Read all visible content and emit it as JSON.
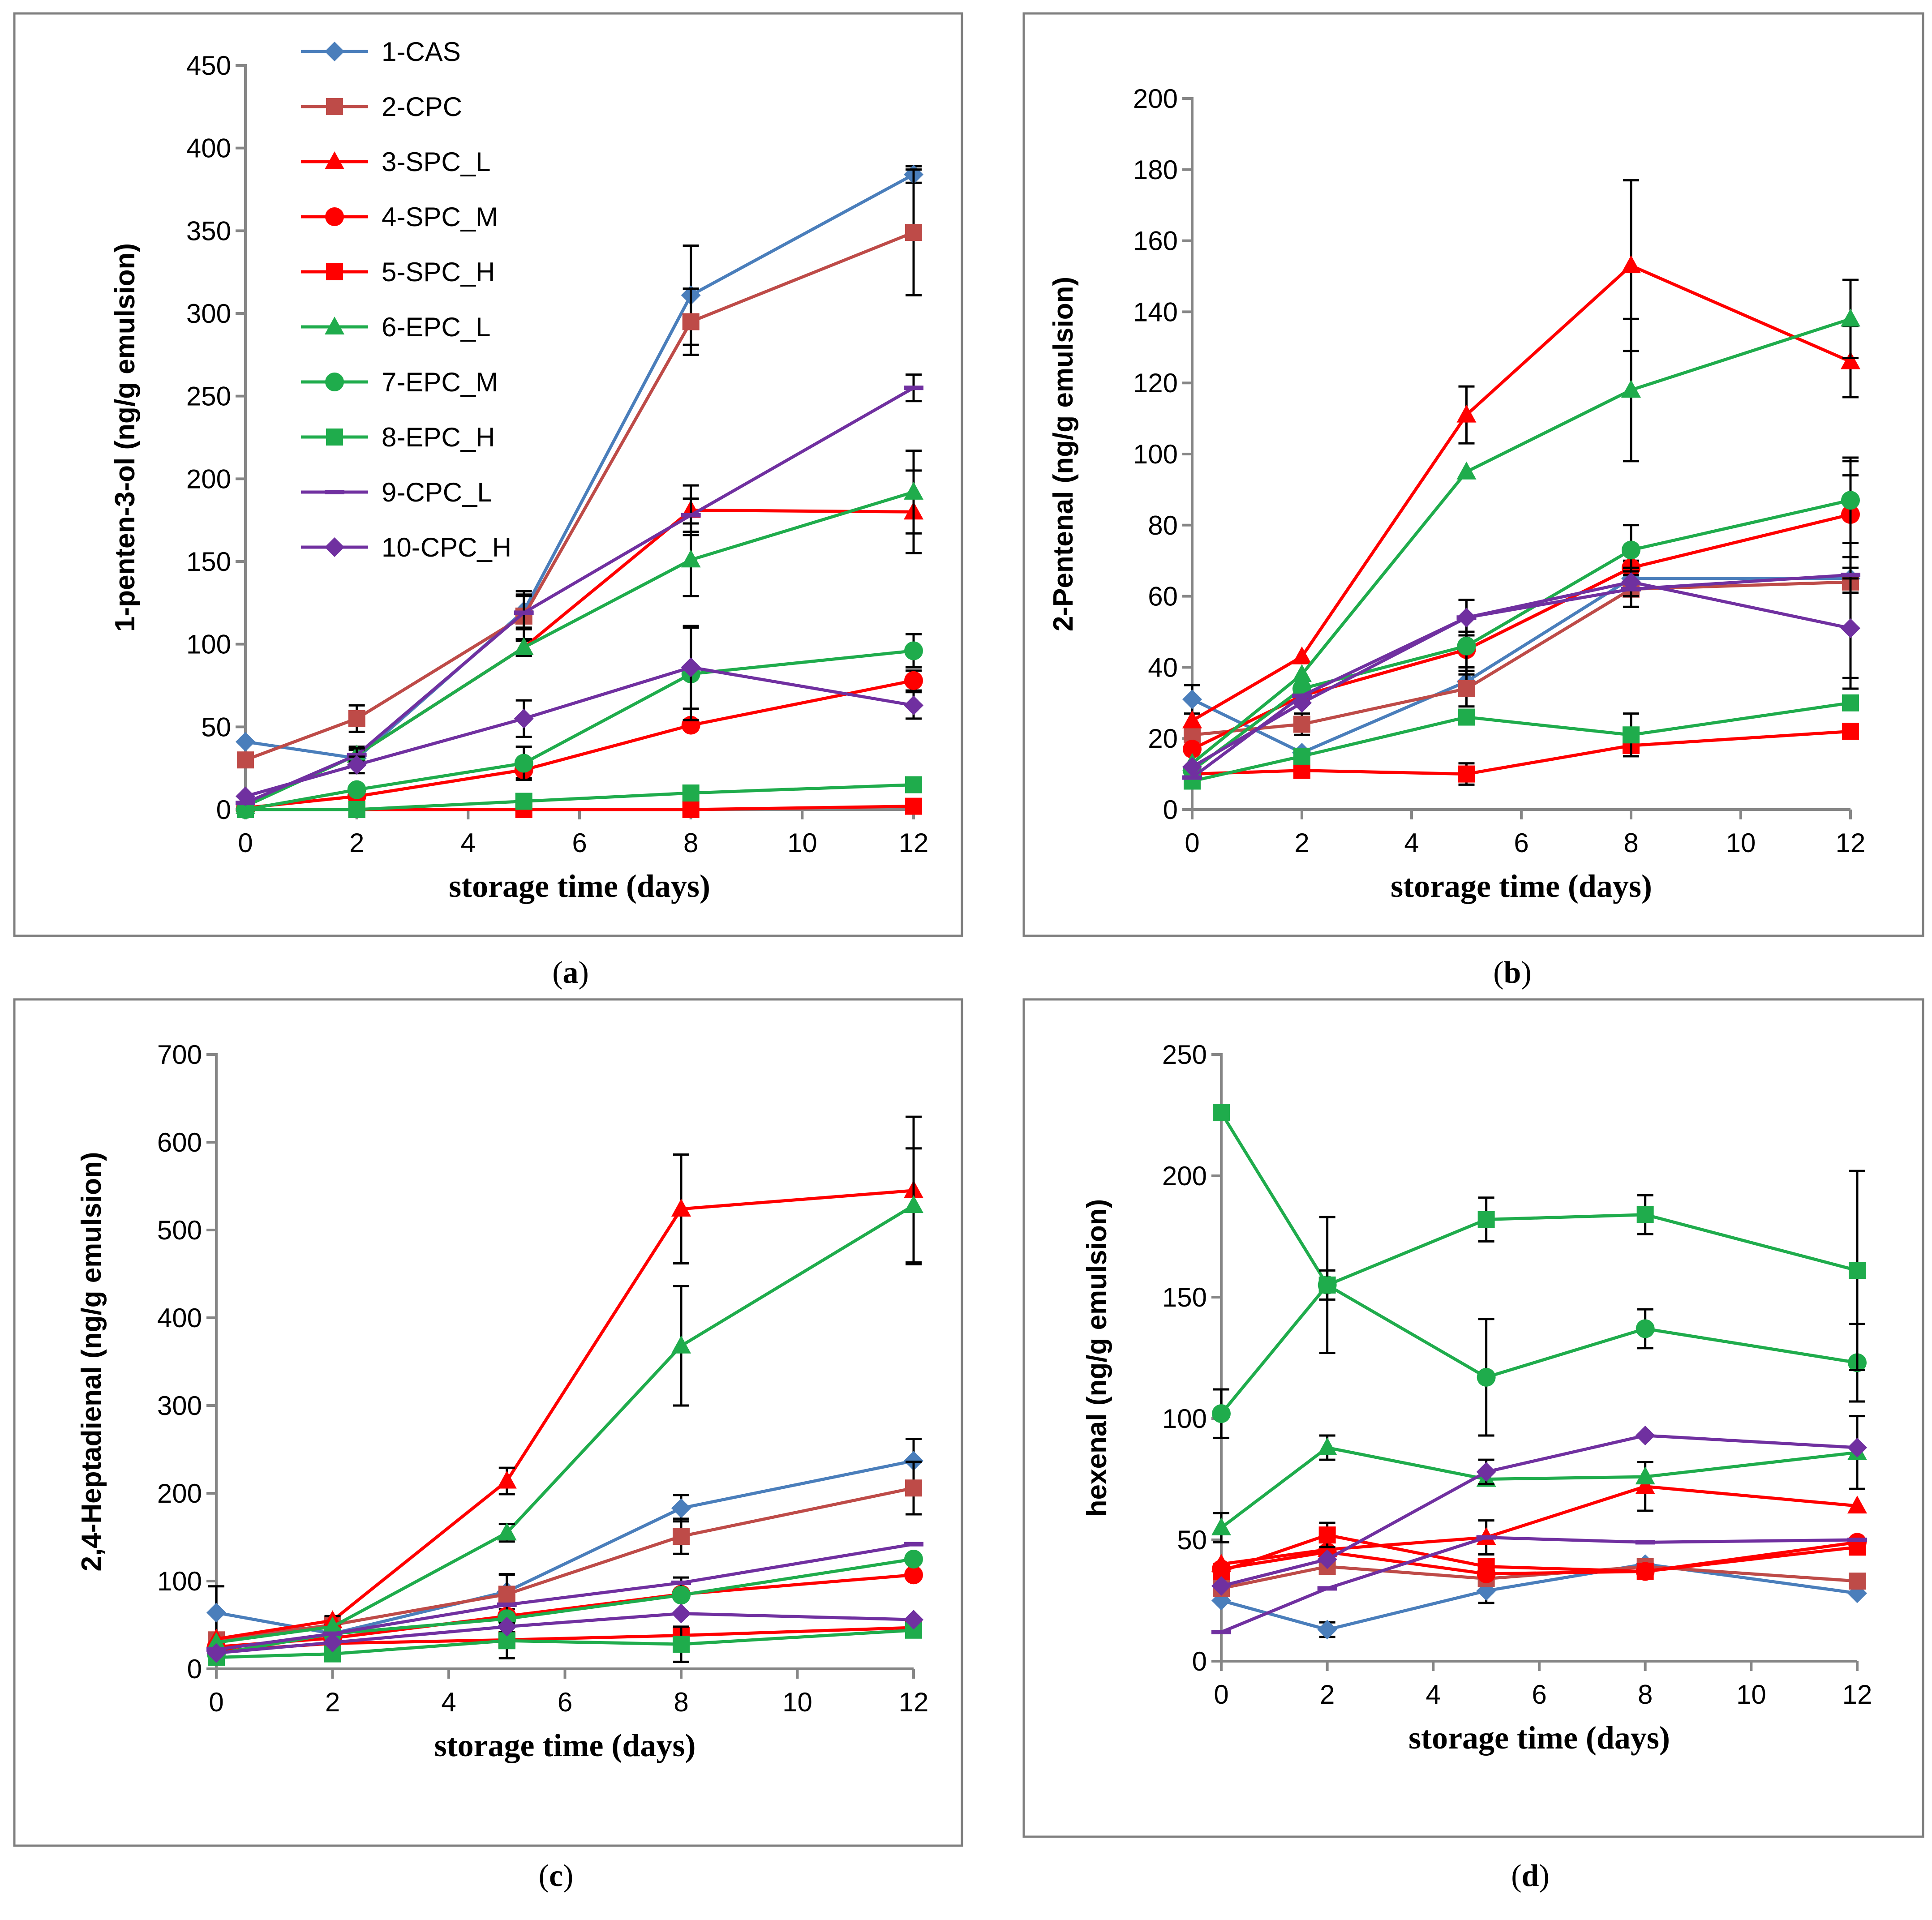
{
  "figure": {
    "xlabel": "storage time (days)",
    "series_styles": [
      {
        "name": "1-CAS",
        "color": "#4a7ebb",
        "marker": "diamond"
      },
      {
        "name": "2-CPC",
        "color": "#be4b48",
        "marker": "square"
      },
      {
        "name": "3-SPC_L",
        "color": "#ff0000",
        "marker": "triangle"
      },
      {
        "name": "4-SPC_M",
        "color": "#ff0000",
        "marker": "circle"
      },
      {
        "name": "5-SPC_H",
        "color": "#ff0000",
        "marker": "square"
      },
      {
        "name": "6-EPC_L",
        "color": "#1fac4c",
        "marker": "triangle"
      },
      {
        "name": "7-EPC_M",
        "color": "#1fac4c",
        "marker": "circle"
      },
      {
        "name": "8-EPC_H",
        "color": "#1fac4c",
        "marker": "square"
      },
      {
        "name": "9-CPC_L",
        "color": "#7030a0",
        "marker": "dash"
      },
      {
        "name": "10-CPC_H",
        "color": "#7030a0",
        "marker": "diamond"
      }
    ]
  },
  "chart_data": [
    {
      "id": "a",
      "type": "line",
      "caption_letter": "a",
      "title": "",
      "xlabel": "storage time (days)",
      "ylabel": "1-penten-3-ol (ng/g emulsion)",
      "x": [
        0,
        2,
        5,
        8,
        12
      ],
      "xticks": [
        0,
        2,
        4,
        6,
        8,
        10,
        12
      ],
      "xlim": [
        0,
        12
      ],
      "ylim": [
        0,
        450
      ],
      "yticks": [
        0,
        50,
        100,
        150,
        200,
        250,
        300,
        350,
        400,
        450
      ],
      "legend": true,
      "series": [
        {
          "name": "1-CAS",
          "values": [
            41,
            31,
            120,
            311,
            384
          ],
          "errors": [
            0,
            0,
            10,
            30,
            5
          ]
        },
        {
          "name": "2-CPC",
          "values": [
            30,
            55,
            117,
            295,
            349
          ],
          "errors": [
            0,
            8,
            15,
            20,
            38
          ]
        },
        {
          "name": "3-SPC_L",
          "values": [
            3,
            33,
            98,
            181,
            180
          ],
          "errors": [
            0,
            5,
            5,
            15,
            25
          ]
        },
        {
          "name": "4-SPC_M",
          "values": [
            1,
            8,
            24,
            51,
            78
          ],
          "errors": [
            0,
            0,
            5,
            0,
            6
          ]
        },
        {
          "name": "5-SPC_H",
          "values": [
            0,
            0,
            0,
            0,
            2
          ],
          "errors": [
            0,
            0,
            0,
            0,
            0
          ]
        },
        {
          "name": "6-EPC_L",
          "values": [
            2,
            33,
            98,
            151,
            192
          ],
          "errors": [
            0,
            3,
            5,
            22,
            25
          ]
        },
        {
          "name": "7-EPC_M",
          "values": [
            0,
            12,
            28,
            82,
            96
          ],
          "errors": [
            0,
            0,
            10,
            28,
            10
          ]
        },
        {
          "name": "8-EPC_H",
          "values": [
            0,
            0,
            5,
            10,
            15
          ],
          "errors": [
            0,
            0,
            0,
            0,
            0
          ]
        },
        {
          "name": "9-CPC_L",
          "values": [
            4,
            33,
            119,
            178,
            255
          ],
          "errors": [
            0,
            4,
            10,
            10,
            8
          ]
        },
        {
          "name": "10-CPC_H",
          "values": [
            8,
            27,
            55,
            86,
            63
          ],
          "errors": [
            0,
            5,
            11,
            25,
            8
          ]
        }
      ]
    },
    {
      "id": "b",
      "type": "line",
      "caption_letter": "b",
      "title": "",
      "xlabel": "storage time (days)",
      "ylabel": "2-Pentenal (ng/g emulsion)",
      "x": [
        0,
        2,
        5,
        8,
        12
      ],
      "xticks": [
        0,
        2,
        4,
        6,
        8,
        10,
        12
      ],
      "xlim": [
        0,
        12
      ],
      "ylim": [
        0,
        200
      ],
      "yticks": [
        0,
        20,
        40,
        60,
        80,
        100,
        120,
        140,
        160,
        180,
        200
      ],
      "legend": false,
      "series": [
        {
          "name": "1-CAS",
          "values": [
            31,
            16,
            36,
            65,
            65
          ],
          "errors": [
            4,
            0,
            3,
            5,
            0
          ]
        },
        {
          "name": "2-CPC",
          "values": [
            21,
            24,
            34,
            62,
            64
          ],
          "errors": [
            0,
            3,
            5,
            5,
            30
          ]
        },
        {
          "name": "3-SPC_L",
          "values": [
            25,
            43,
            111,
            153,
            126
          ],
          "errors": [
            0,
            0,
            8,
            24,
            10
          ]
        },
        {
          "name": "4-SPC_M",
          "values": [
            17,
            32,
            45,
            68,
            83
          ],
          "errors": [
            0,
            0,
            5,
            0,
            15
          ]
        },
        {
          "name": "5-SPC_H",
          "values": [
            10,
            11,
            10,
            18,
            22
          ],
          "errors": [
            0,
            0,
            3,
            3,
            0
          ]
        },
        {
          "name": "6-EPC_L",
          "values": [
            13,
            38,
            95,
            118,
            138
          ],
          "errors": [
            0,
            0,
            0,
            20,
            11
          ]
        },
        {
          "name": "7-EPC_M",
          "values": [
            11,
            34,
            46,
            73,
            87
          ],
          "errors": [
            0,
            0,
            8,
            7,
            12
          ]
        },
        {
          "name": "8-EPC_H",
          "values": [
            8,
            15,
            26,
            21,
            30
          ],
          "errors": [
            0,
            0,
            0,
            6,
            0
          ]
        },
        {
          "name": "9-CPC_L",
          "values": [
            9,
            32,
            54,
            62,
            66
          ],
          "errors": [
            0,
            0,
            5,
            5,
            5
          ]
        },
        {
          "name": "10-CPC_H",
          "values": [
            12,
            30,
            54,
            64,
            51
          ],
          "errors": [
            0,
            0,
            5,
            4,
            14
          ]
        }
      ]
    },
    {
      "id": "c",
      "type": "line",
      "caption_letter": "c",
      "title": "",
      "xlabel": "storage time (days)",
      "ylabel": "2,4-Heptadienal (ng/g emulsion)",
      "x": [
        0,
        2,
        5,
        8,
        12
      ],
      "xticks": [
        0,
        2,
        4,
        6,
        8,
        10,
        12
      ],
      "xlim": [
        0,
        12
      ],
      "ylim": [
        0,
        700
      ],
      "yticks": [
        0,
        100,
        200,
        300,
        400,
        500,
        600,
        700
      ],
      "legend": false,
      "series": [
        {
          "name": "1-CAS",
          "values": [
            64,
            40,
            88,
            183,
            237
          ],
          "errors": [
            30,
            0,
            20,
            15,
            25
          ]
        },
        {
          "name": "2-CPC",
          "values": [
            33,
            50,
            85,
            151,
            206
          ],
          "errors": [
            0,
            10,
            22,
            20,
            30
          ]
        },
        {
          "name": "3-SPC_L",
          "values": [
            34,
            55,
            214,
            524,
            545
          ],
          "errors": [
            0,
            5,
            15,
            62,
            84
          ]
        },
        {
          "name": "4-SPC_M",
          "values": [
            25,
            35,
            60,
            85,
            107
          ],
          "errors": [
            0,
            0,
            0,
            0,
            0
          ]
        },
        {
          "name": "5-SPC_H",
          "values": [
            20,
            29,
            33,
            38,
            47
          ],
          "errors": [
            0,
            0,
            0,
            0,
            0
          ]
        },
        {
          "name": "6-EPC_L",
          "values": [
            30,
            48,
            155,
            368,
            528
          ],
          "errors": [
            0,
            0,
            10,
            68,
            65
          ]
        },
        {
          "name": "7-EPC_M",
          "values": [
            17,
            40,
            57,
            84,
            125
          ],
          "errors": [
            0,
            0,
            15,
            20,
            0
          ]
        },
        {
          "name": "8-EPC_H",
          "values": [
            13,
            17,
            32,
            28,
            44
          ],
          "errors": [
            0,
            0,
            20,
            20,
            0
          ]
        },
        {
          "name": "9-CPC_L",
          "values": [
            22,
            40,
            73,
            98,
            142
          ],
          "errors": [
            0,
            0,
            0,
            0,
            0
          ]
        },
        {
          "name": "10-CPC_H",
          "values": [
            18,
            30,
            48,
            63,
            56
          ],
          "errors": [
            0,
            0,
            0,
            0,
            0
          ]
        }
      ]
    },
    {
      "id": "d",
      "type": "line",
      "caption_letter": "d",
      "title": "",
      "xlabel": "storage time (days)",
      "ylabel": "hexenal (ng/g emulsion)",
      "x": [
        0,
        2,
        5,
        8,
        12
      ],
      "xticks": [
        0,
        2,
        4,
        6,
        8,
        10,
        12
      ],
      "xlim": [
        0,
        12
      ],
      "ylim": [
        0,
        250
      ],
      "yticks": [
        0,
        50,
        100,
        150,
        200,
        250
      ],
      "legend": false,
      "series": [
        {
          "name": "1-CAS",
          "values": [
            25,
            13,
            29,
            40,
            28
          ],
          "errors": [
            0,
            3,
            5,
            0,
            0
          ]
        },
        {
          "name": "2-CPC",
          "values": [
            30,
            39,
            34,
            39,
            33
          ],
          "errors": [
            0,
            0,
            0,
            0,
            0
          ]
        },
        {
          "name": "3-SPC_L",
          "values": [
            40,
            46,
            51,
            72,
            64
          ],
          "errors": [
            0,
            0,
            7,
            10,
            0
          ]
        },
        {
          "name": "4-SPC_M",
          "values": [
            38,
            45,
            36,
            37,
            49
          ],
          "errors": [
            0,
            0,
            0,
            0,
            0
          ]
        },
        {
          "name": "5-SPC_H",
          "values": [
            37,
            52,
            39,
            37,
            47
          ],
          "errors": [
            0,
            5,
            0,
            0,
            0
          ]
        },
        {
          "name": "6-EPC_L",
          "values": [
            55,
            88,
            75,
            76,
            86
          ],
          "errors": [
            6,
            5,
            0,
            0,
            15
          ]
        },
        {
          "name": "7-EPC_M",
          "values": [
            102,
            155,
            117,
            137,
            123
          ],
          "errors": [
            10,
            28,
            24,
            8,
            16
          ]
        },
        {
          "name": "8-EPC_H",
          "values": [
            226,
            155,
            182,
            184,
            161
          ],
          "errors": [
            0,
            6,
            9,
            8,
            41
          ]
        },
        {
          "name": "9-CPC_L",
          "values": [
            12,
            30,
            51,
            49,
            50
          ],
          "errors": [
            0,
            0,
            0,
            0,
            0
          ]
        },
        {
          "name": "10-CPC_H",
          "values": [
            31,
            42,
            78,
            93,
            88
          ],
          "errors": [
            0,
            0,
            5,
            0,
            0
          ]
        }
      ]
    }
  ]
}
